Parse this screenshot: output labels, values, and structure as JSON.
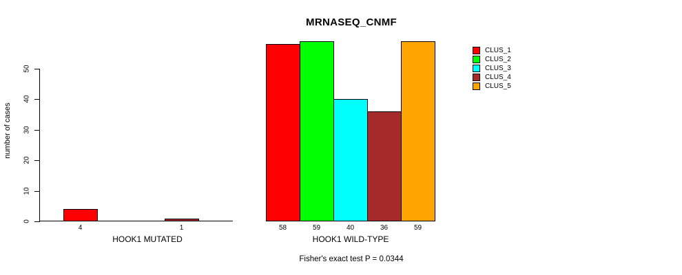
{
  "title": "MRNASEQ_CNMF",
  "ylabel": "number of cases",
  "footer": "Fisher's exact test P = 0.0344",
  "legend": [
    {
      "label": "CLUS_1",
      "color": "#FF0000"
    },
    {
      "label": "CLUS_2",
      "color": "#00FF00"
    },
    {
      "label": "CLUS_3",
      "color": "#00FFFF"
    },
    {
      "label": "CLUS_4",
      "color": "#A52A2A"
    },
    {
      "label": "CLUS_5",
      "color": "#FFA500"
    }
  ],
  "chart_data": {
    "type": "bar",
    "title": "MRNASEQ_CNMF",
    "ylabel": "number of cases",
    "xlabel": "",
    "series": [
      "CLUS_1",
      "CLUS_2",
      "CLUS_3",
      "CLUS_4",
      "CLUS_5"
    ],
    "colors": [
      "#FF0000",
      "#00FF00",
      "#00FFFF",
      "#A52A2A",
      "#FFA500"
    ],
    "groups": [
      {
        "label": "HOOK1 MUTATED",
        "values": [
          4,
          0,
          0,
          1,
          0
        ]
      },
      {
        "label": "HOOK1 WILD-TYPE",
        "values": [
          58,
          59,
          40,
          36,
          59
        ]
      }
    ],
    "bar_value_labels": [
      [
        "4",
        "1"
      ],
      [
        "58",
        "59",
        "40",
        "36",
        "59"
      ]
    ],
    "y_ticks": [
      0,
      10,
      20,
      30,
      40,
      50
    ],
    "ylim": [
      0,
      50
    ],
    "grid": false,
    "legend_position": "right",
    "annotation": "Fisher's exact test P = 0.0344"
  }
}
